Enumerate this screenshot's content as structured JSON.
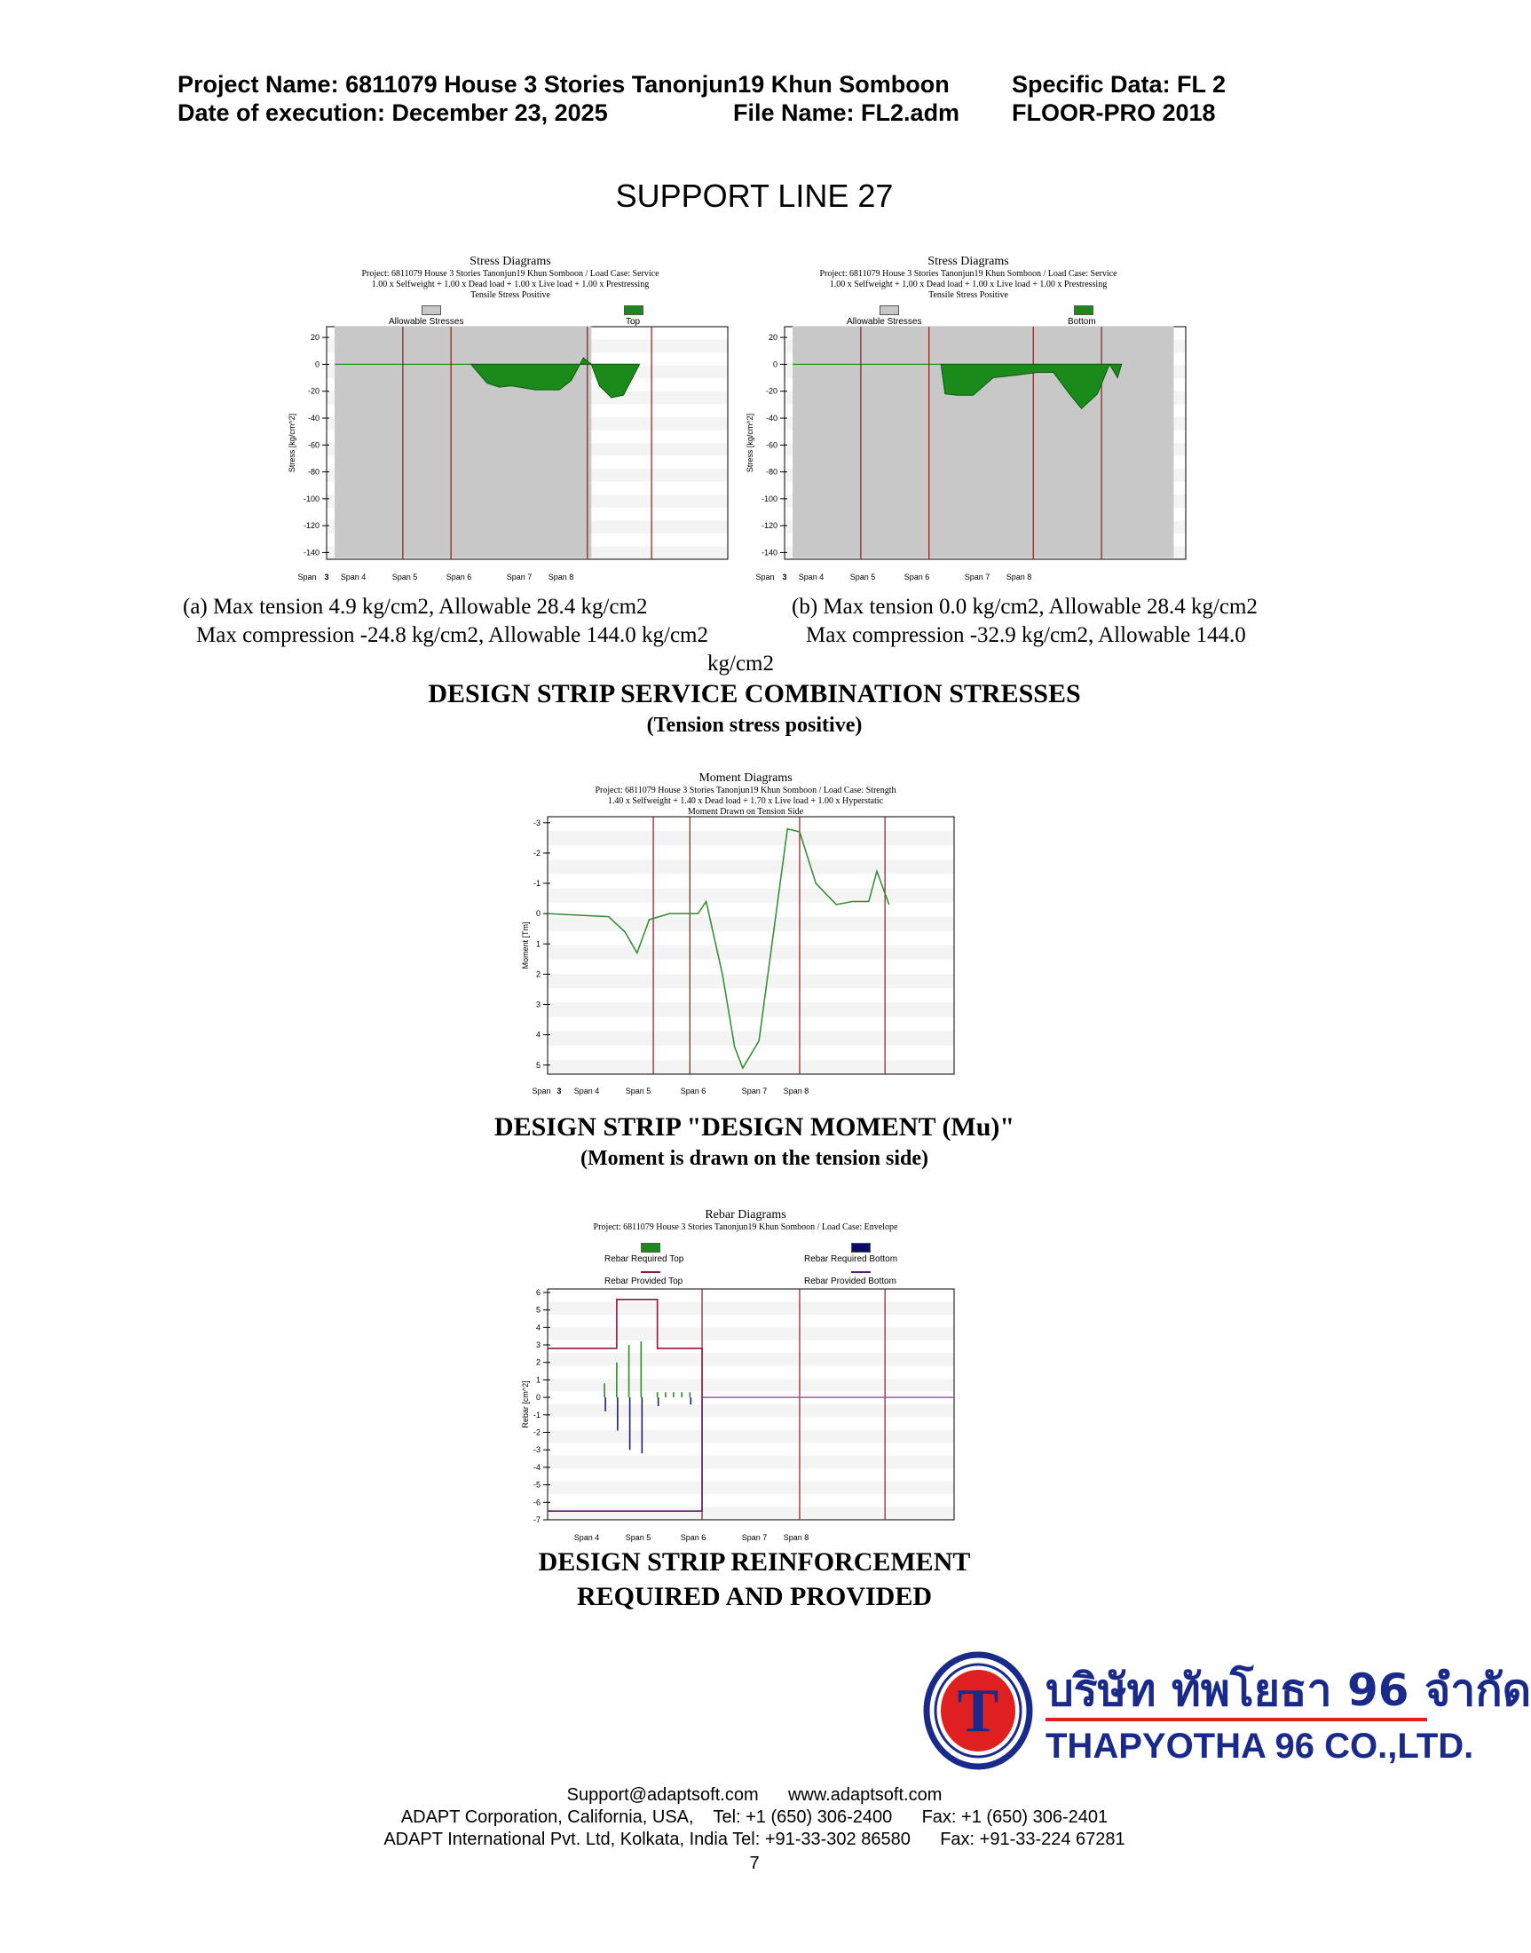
{
  "header": {
    "project_name": "Project Name: 6811079 House 3 Stories Tanonjun19 Khun Somboon",
    "specific_data": "Specific Data: FL 2",
    "date_of_execution": "Date of execution: December 23, 2025",
    "file_name": "File Name: FL2.adm",
    "software": "FLOOR-PRO 2018"
  },
  "page_title": "SUPPORT LINE 27",
  "stress_section": {
    "caption_a_line1": "(a) Max tension 4.9 kg/cm2, Allowable 28.4 kg/cm2",
    "caption_a_line2": "Max compression -24.8 kg/cm2, Allowable 144.0 kg/cm2",
    "caption_b_line1": "(b) Max tension 0.0 kg/cm2, Allowable 28.4 kg/cm2",
    "caption_b_line2": "Max compression -32.9 kg/cm2, Allowable 144.0",
    "caption_b_line3": "kg/cm2",
    "heading": "DESIGN STRIP SERVICE COMBINATION STRESSES",
    "subheading": "(Tension stress positive)"
  },
  "moment_section": {
    "heading": "DESIGN STRIP \"DESIGN MOMENT (Mu)\"",
    "subheading": "(Moment is drawn on the tension side)"
  },
  "rebar_section": {
    "heading_line1": "DESIGN STRIP REINFORCEMENT",
    "heading_line2": "REQUIRED AND PROVIDED"
  },
  "logo": {
    "thai_name": "บริษัท ทัพโยธา 96 จำกัด",
    "english_name": "THAPYOTHA 96 CO.,LTD.",
    "letter": "T",
    "colors": {
      "ring": "#1a2a8a",
      "red": "#e02020",
      "text": "#1a2a8a"
    }
  },
  "footer": {
    "line1": "Support@adaptsoft.com      www.adaptsoft.com",
    "line2": "ADAPT Corporation, California, USA,    Tel: +1 (650) 306-2400      Fax: +1 (650) 306-2401",
    "line3": "ADAPT International Pvt. Ltd, Kolkata, India Tel: +91-33-302 86580      Fax: +91-33-224 67281",
    "page_number": "7"
  },
  "colors": {
    "stress_fill": "#1a8a1a",
    "allowable_fill": "#c8c8c8",
    "support_line": "#8b1a1a",
    "moment_line": "#2e8b2e",
    "rebar_top": "#2e8b2e",
    "rebar_bottom": "#1a1a8a",
    "provided_line": "#8b1a3a"
  },
  "chart_data": [
    {
      "type": "area",
      "title": "Stress Diagrams",
      "subtitle_lines": [
        "Project: 6811079 House 3 Stories Tanonjun19 Khun Somboon / Load Case: Service",
        "1.00 x Selfweight + 1.00 x Dead load + 1.00 x Live load + 1.00 x Prestressing",
        "Tensile Stress Positive"
      ],
      "legend": [
        "Allowable Stresses",
        "Top"
      ],
      "ylabel": "Stress [kg/cm^2]",
      "ylim": [
        -145,
        28
      ],
      "yticks": [
        20,
        0,
        -20,
        -40,
        -60,
        -80,
        -100,
        -120,
        -140
      ],
      "span_labels": [
        "Span",
        "3",
        "Span 4",
        "Span 5",
        "Span 6",
        "Span 7",
        "Span 8"
      ],
      "x": [
        0.36,
        0.4,
        0.43,
        0.46,
        0.52,
        0.58,
        0.61,
        0.64,
        0.66,
        0.68,
        0.71,
        0.74,
        0.78
      ],
      "values": [
        0,
        -14,
        -17,
        -16,
        -19,
        -19,
        -12,
        4.9,
        0,
        -16,
        -24.8,
        -23,
        0
      ],
      "allowable_region_x": [
        0.02,
        0.66
      ],
      "allowable_range": [
        28.4,
        -144.0
      ]
    },
    {
      "type": "area",
      "title": "Stress Diagrams",
      "subtitle_lines": [
        "Project: 6811079 House 3 Stories Tanonjun19 Khun Somboon / Load Case: Service",
        "1.00 x Selfweight + 1.00 x Dead load + 1.00 x Live load + 1.00 x Prestressing",
        "Tensile Stress Positive"
      ],
      "legend": [
        "Allowable Stresses",
        "Bottom"
      ],
      "ylabel": "Stress [kg/cm^2]",
      "ylim": [
        -145,
        28
      ],
      "yticks": [
        20,
        0,
        -20,
        -40,
        -60,
        -80,
        -100,
        -120,
        -140
      ],
      "span_labels": [
        "Span",
        "3",
        "Span 4",
        "Span 5",
        "Span 6",
        "Span 7",
        "Span 8"
      ],
      "x": [
        0.39,
        0.4,
        0.43,
        0.47,
        0.52,
        0.58,
        0.63,
        0.67,
        0.71,
        0.74,
        0.78,
        0.81,
        0.83,
        0.84
      ],
      "values": [
        0,
        -22,
        -23,
        -23,
        -10,
        -8,
        -6,
        -6,
        -22,
        -32.9,
        -22,
        0,
        -10,
        0
      ],
      "allowable_region_x": [
        0.02,
        0.97
      ],
      "allowable_range": [
        28.4,
        -144.0
      ]
    },
    {
      "type": "line",
      "title": "Moment Diagrams",
      "subtitle_lines": [
        "Project: 6811079 House 3 Stories Tanonjun19 Khun Somboon / Load Case: Strength",
        "1.40 x Selfweight + 1.40 x Dead load + 1.70 x Live load + 1.00 x Hyperstatic",
        "Moment Drawn on Tension Side"
      ],
      "ylabel": "Moment [Tm]",
      "ylim": [
        5.3,
        -3.2
      ],
      "yticks": [
        -3,
        -2,
        -1,
        0,
        1,
        2,
        3,
        4,
        5
      ],
      "span_labels": [
        "Span",
        "3",
        "Span 4",
        "Span 5",
        "Span 6",
        "Span 7",
        "Span 8"
      ],
      "x": [
        0.0,
        0.15,
        0.19,
        0.22,
        0.25,
        0.3,
        0.37,
        0.39,
        0.43,
        0.46,
        0.48,
        0.52,
        0.59,
        0.62,
        0.66,
        0.71,
        0.75,
        0.79,
        0.81,
        0.84
      ],
      "values": [
        0,
        0.1,
        0.6,
        1.3,
        0.2,
        0,
        0,
        -0.4,
        2.0,
        4.4,
        5.1,
        4.2,
        -2.8,
        -2.7,
        -1.0,
        -0.3,
        -0.4,
        -0.4,
        -1.4,
        -0.3
      ]
    },
    {
      "type": "line",
      "title": "Rebar Diagrams",
      "subtitle_lines": [
        "Project: 6811079 House 3 Stories Tanonjun19 Khun Somboon / Load Case: Envelope"
      ],
      "legend": [
        "Rebar Required Top",
        "Rebar Required Bottom",
        "Rebar Provided Top",
        "Rebar Provided Bottom"
      ],
      "ylabel": "Rebar [cm^2]",
      "ylim": [
        -7,
        6.2
      ],
      "yticks": [
        6,
        5,
        4,
        3,
        2,
        1,
        0,
        -1,
        -2,
        -3,
        -4,
        -5,
        -6,
        -7
      ],
      "span_labels": [
        "Span 4",
        "Span 5",
        "Span 6",
        "Span 7",
        "Span 8"
      ],
      "series": [
        {
          "name": "Rebar Provided Top",
          "x": [
            0.0,
            0.17,
            0.17,
            0.27,
            0.27,
            0.38,
            0.38
          ],
          "values": [
            2.8,
            2.8,
            5.6,
            5.6,
            2.8,
            2.8,
            0
          ]
        },
        {
          "name": "Rebar Provided Bottom",
          "x": [
            0.0,
            0.38,
            0.38
          ],
          "values": [
            -6.5,
            -6.5,
            0
          ]
        },
        {
          "name": "Rebar Required Top",
          "x": [
            0.14,
            0.17,
            0.2,
            0.23,
            0.27,
            0.29,
            0.31,
            0.33,
            0.35
          ],
          "values": [
            0.8,
            2.0,
            3.0,
            3.2,
            0.3,
            0.3,
            0.3,
            0.3,
            0.3
          ]
        },
        {
          "name": "Rebar Required Bottom",
          "x": [
            0.14,
            0.17,
            0.2,
            0.23,
            0.27,
            0.35
          ],
          "values": [
            -0.8,
            -1.9,
            -3.0,
            -3.2,
            -0.5,
            -0.4
          ]
        },
        {
          "name": "Zero Line",
          "x": [
            0.38,
            1.0
          ],
          "values": [
            0,
            0
          ]
        }
      ]
    }
  ]
}
